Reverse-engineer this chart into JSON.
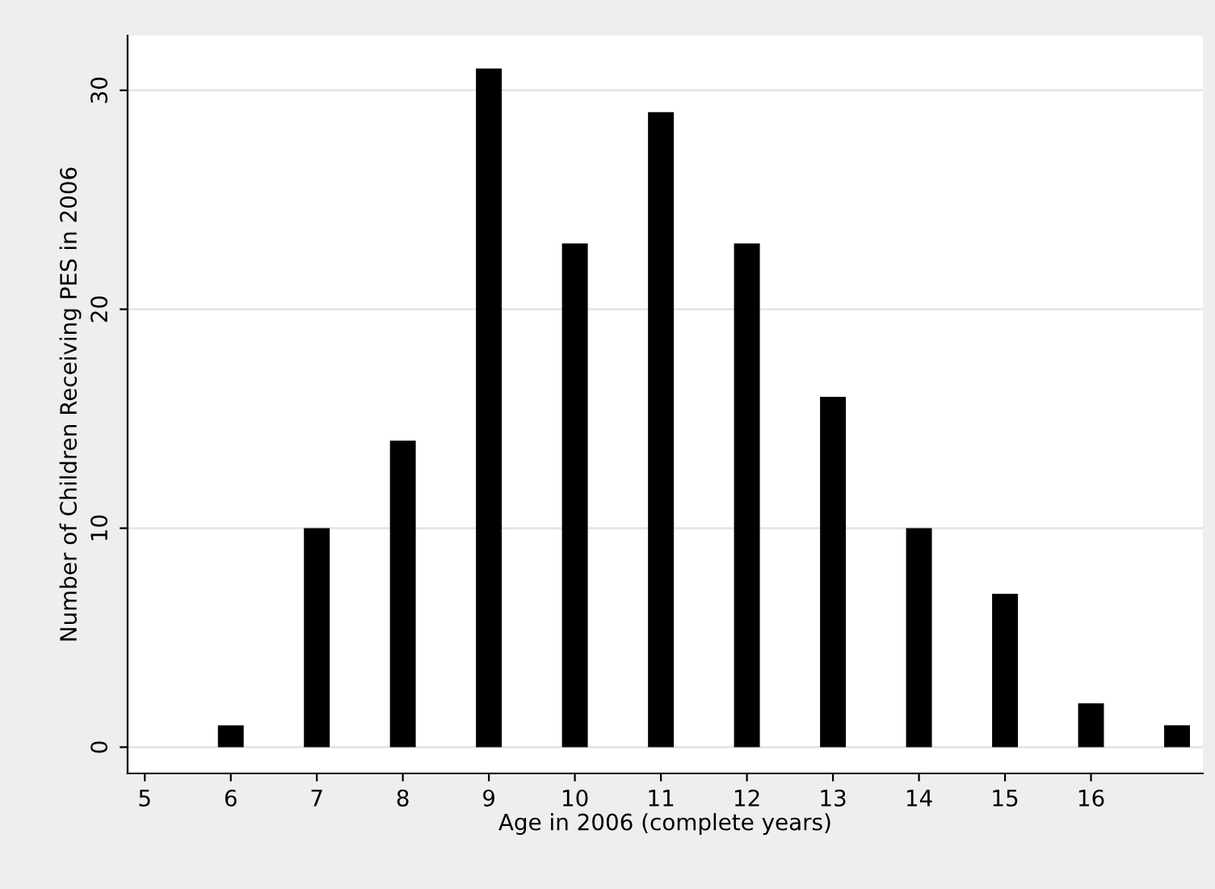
{
  "chart_data": {
    "type": "bar",
    "xlabel": "Age in 2006 (complete years)",
    "ylabel": "Number of Children Receiving PES in 2006",
    "x": [
      6,
      7,
      8,
      9,
      10,
      11,
      12,
      13,
      14,
      15,
      16,
      17
    ],
    "values": [
      1,
      10,
      14,
      31,
      23,
      29,
      23,
      16,
      10,
      7,
      2,
      1
    ],
    "color": "#000000",
    "xlim": [
      4.8,
      17.3
    ],
    "xticks": [
      5,
      6,
      7,
      8,
      9,
      10,
      11,
      12,
      13,
      14,
      15,
      16
    ],
    "ylim": [
      -1.2,
      32.5
    ],
    "yticks": [
      0,
      10,
      20,
      30
    ],
    "grid": "y"
  }
}
